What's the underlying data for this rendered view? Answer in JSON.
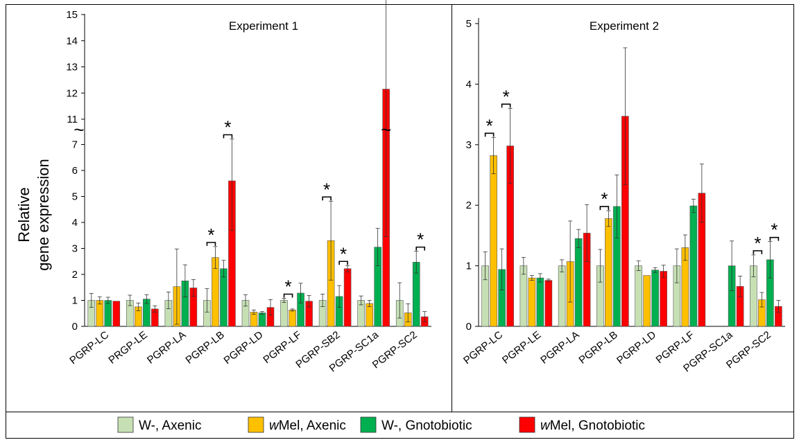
{
  "y_axis_label": [
    "Relative",
    "gene expression"
  ],
  "legend": [
    {
      "label_main": "W-, Axenic",
      "label_italic": "",
      "color": "#c6e0b4"
    },
    {
      "label_italic": "w",
      "label_main": "Mel, Axenic",
      "color": "#ffc000"
    },
    {
      "label_main": "W-, Gnotobiotic",
      "label_italic": "",
      "color": "#00b050"
    },
    {
      "label_italic": "w",
      "label_main": "Mel, Gnotobiotic",
      "color": "#ff0000"
    }
  ],
  "chart_data": [
    {
      "type": "bar",
      "title": "Experiment 1",
      "xlabel": "",
      "ylabel": "Relative gene expression",
      "axis_break": {
        "lower": [
          0,
          7
        ],
        "upper": [
          11,
          15
        ]
      },
      "yticks": [
        "0",
        "1",
        "2",
        "3",
        "4",
        "5",
        "6",
        "7",
        "11",
        "12",
        "13",
        "14",
        "15"
      ],
      "categories": [
        "PGRP-LC",
        "PRGP-LE",
        "PGRP-LA",
        "PGRP-LB",
        "PGRP-LD",
        "PGRP-LF",
        "PGRP-SB2",
        "PGRP-SC1a",
        "PGRP-SC2"
      ],
      "series": [
        {
          "name": "W-, Axenic",
          "color": "#c6e0b4",
          "values": [
            1.0,
            1.0,
            1.0,
            1.0,
            1.0,
            1.0,
            1.0,
            1.0,
            1.0
          ],
          "errors": [
            0.27,
            0.2,
            0.32,
            0.45,
            0.22,
            0.08,
            0.24,
            0.17,
            0.68
          ]
        },
        {
          "name": "wMel, Axenic",
          "color": "#ffc000",
          "values": [
            1.0,
            0.75,
            1.53,
            2.65,
            0.55,
            0.63,
            3.3,
            0.88,
            0.52
          ],
          "errors": [
            0.14,
            0.15,
            1.45,
            0.42,
            0.08,
            0.04,
            1.52,
            0.12,
            0.35
          ]
        },
        {
          "name": "W-, Gnotobiotic",
          "color": "#00b050",
          "values": [
            1.0,
            1.05,
            1.75,
            2.22,
            0.52,
            1.28,
            1.15,
            3.05,
            2.47
          ]
        },
        {
          "name": "wMel, Gnotobiotic",
          "color": "#ff0000",
          "values": [
            0.97,
            0.67,
            1.48,
            5.6,
            0.73,
            0.97,
            2.22,
            12.15,
            0.37
          ],
          "errors": [
            0.0,
            0.12,
            0.32,
            1.9,
            0.3,
            0.22,
            0.12,
            8.7,
            0.2
          ]
        }
      ],
      "gnoto_errors": [
        0.12,
        0.17,
        0.62,
        0.32,
        0.05,
        0.38,
        0.42,
        0.72,
        0.42
      ],
      "significance": [
        {
          "category": 3,
          "pair": [
            0,
            1
          ],
          "label": "*"
        },
        {
          "category": 3,
          "pair": [
            2,
            3
          ],
          "label": "*"
        },
        {
          "category": 5,
          "pair": [
            0,
            1
          ],
          "label": "*"
        },
        {
          "category": 6,
          "pair": [
            0,
            1
          ],
          "label": "*"
        },
        {
          "category": 6,
          "pair": [
            2,
            3
          ],
          "label": "*"
        },
        {
          "category": 7,
          "pair": [
            2,
            3
          ],
          "label": "*"
        },
        {
          "category": 8,
          "pair": [
            2,
            3
          ],
          "label": "*"
        }
      ]
    },
    {
      "type": "bar",
      "title": "Experiment 2",
      "xlabel": "",
      "ylabel": "",
      "ylim": [
        0,
        5
      ],
      "yticks": [
        "0",
        "1",
        "2",
        "3",
        "4",
        "5"
      ],
      "categories": [
        "PGRP-LC",
        "PGRP-LE",
        "PGRP-LA",
        "PGRP-LB",
        "PGRP-LD",
        "PGRP-LF",
        "PGRP-SC1a",
        "PGRP-SC2"
      ],
      "series": [
        {
          "name": "W-, Axenic",
          "color": "#c6e0b4",
          "values": [
            1.0,
            1.0,
            1.0,
            1.0,
            1.0,
            1.0,
            null,
            1.0
          ],
          "errors": [
            0.23,
            0.14,
            0.1,
            0.27,
            0.08,
            0.28,
            null,
            0.18
          ]
        },
        {
          "name": "wMel, Axenic",
          "color": "#ffc000",
          "values": [
            2.82,
            0.8,
            1.07,
            1.78,
            0.84,
            1.3,
            null,
            0.44
          ],
          "errors": [
            0.3,
            0.04,
            0.67,
            0.13,
            0.0,
            0.21,
            null,
            0.12
          ]
        },
        {
          "name": "W-, Gnotobiotic",
          "color": "#00b050",
          "values": [
            0.94,
            0.8,
            1.45,
            1.98,
            0.93,
            1.99,
            1.0,
            1.1
          ],
          "errors": [
            0.34,
            0.07,
            0.15,
            0.52,
            0.04,
            0.11,
            0.41,
            0.3
          ]
        },
        {
          "name": "wMel, Gnotobiotic",
          "color": "#ff0000",
          "values": [
            2.98,
            0.76,
            1.54,
            3.47,
            0.91,
            2.2,
            0.66,
            0.33
          ],
          "errors": [
            0.62,
            0.02,
            0.47,
            1.13,
            0.1,
            0.48,
            0.17,
            0.1
          ]
        }
      ],
      "significance": [
        {
          "category": 0,
          "pair": [
            0,
            1
          ],
          "label": "*"
        },
        {
          "category": 0,
          "pair": [
            2,
            3
          ],
          "label": "*"
        },
        {
          "category": 3,
          "pair": [
            0,
            1
          ],
          "label": "*"
        },
        {
          "category": 7,
          "pair": [
            0,
            1
          ],
          "label": "*"
        },
        {
          "category": 7,
          "pair": [
            2,
            3
          ],
          "label": "*"
        }
      ]
    }
  ]
}
